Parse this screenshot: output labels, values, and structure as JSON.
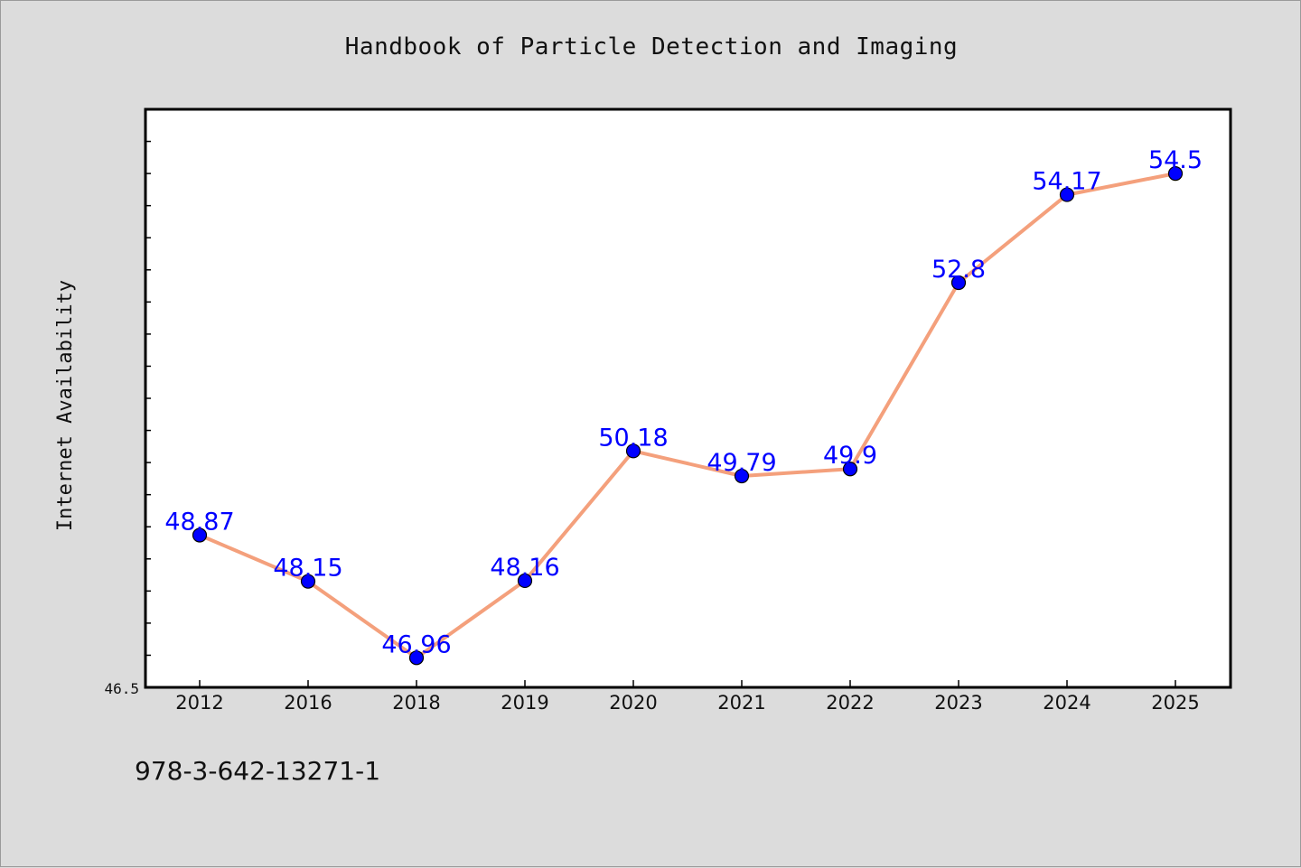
{
  "chart_data": {
    "type": "line",
    "title": "Handbook of Particle Detection and Imaging",
    "xlabel": "",
    "ylabel": "Internet Availability",
    "categories": [
      "2012",
      "2016",
      "2018",
      "2019",
      "2020",
      "2021",
      "2022",
      "2023",
      "2024",
      "2025"
    ],
    "values": [
      48.87,
      48.15,
      46.96,
      48.16,
      50.18,
      49.79,
      49.9,
      52.8,
      54.17,
      54.5
    ],
    "data_labels": [
      "48.87",
      "48.15",
      "46.96",
      "48.16",
      "50.18",
      "49.79",
      "49.9",
      "52.8",
      "54.17",
      "54.5"
    ],
    "ytick_label": "46.5",
    "ylim": [
      46.5,
      55.5
    ],
    "grid": false,
    "line_color": "#f4a07c",
    "marker_color": "#0000ff",
    "label_color": "#0000ff"
  },
  "footer": {
    "code": "978-3-642-13271-1"
  }
}
